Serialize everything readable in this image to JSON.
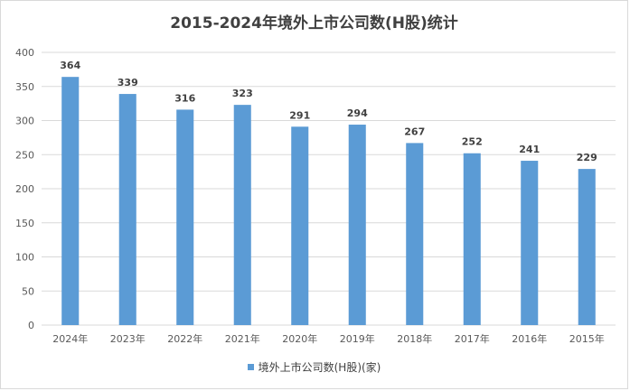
{
  "colors": {
    "bar": "#5b9bd5",
    "grid": "#d9d9d9",
    "axis_text": "#595959",
    "label_text": "#404040"
  },
  "chart_data": {
    "type": "bar",
    "title": "2015-2024年境外上市公司数(H股)统计",
    "categories": [
      "2024年",
      "2023年",
      "2022年",
      "2021年",
      "2020年",
      "2019年",
      "2018年",
      "2017年",
      "2016年",
      "2015年"
    ],
    "series": [
      {
        "name": "境外上市公司数(H股)(家)",
        "values": [
          364,
          339,
          316,
          323,
          291,
          294,
          267,
          252,
          241,
          229
        ]
      }
    ],
    "ylim": [
      0,
      400
    ],
    "yticks": [
      0,
      50,
      100,
      150,
      200,
      250,
      300,
      350,
      400
    ],
    "grid": true,
    "legend_position": "bottom",
    "data_labels": true
  }
}
